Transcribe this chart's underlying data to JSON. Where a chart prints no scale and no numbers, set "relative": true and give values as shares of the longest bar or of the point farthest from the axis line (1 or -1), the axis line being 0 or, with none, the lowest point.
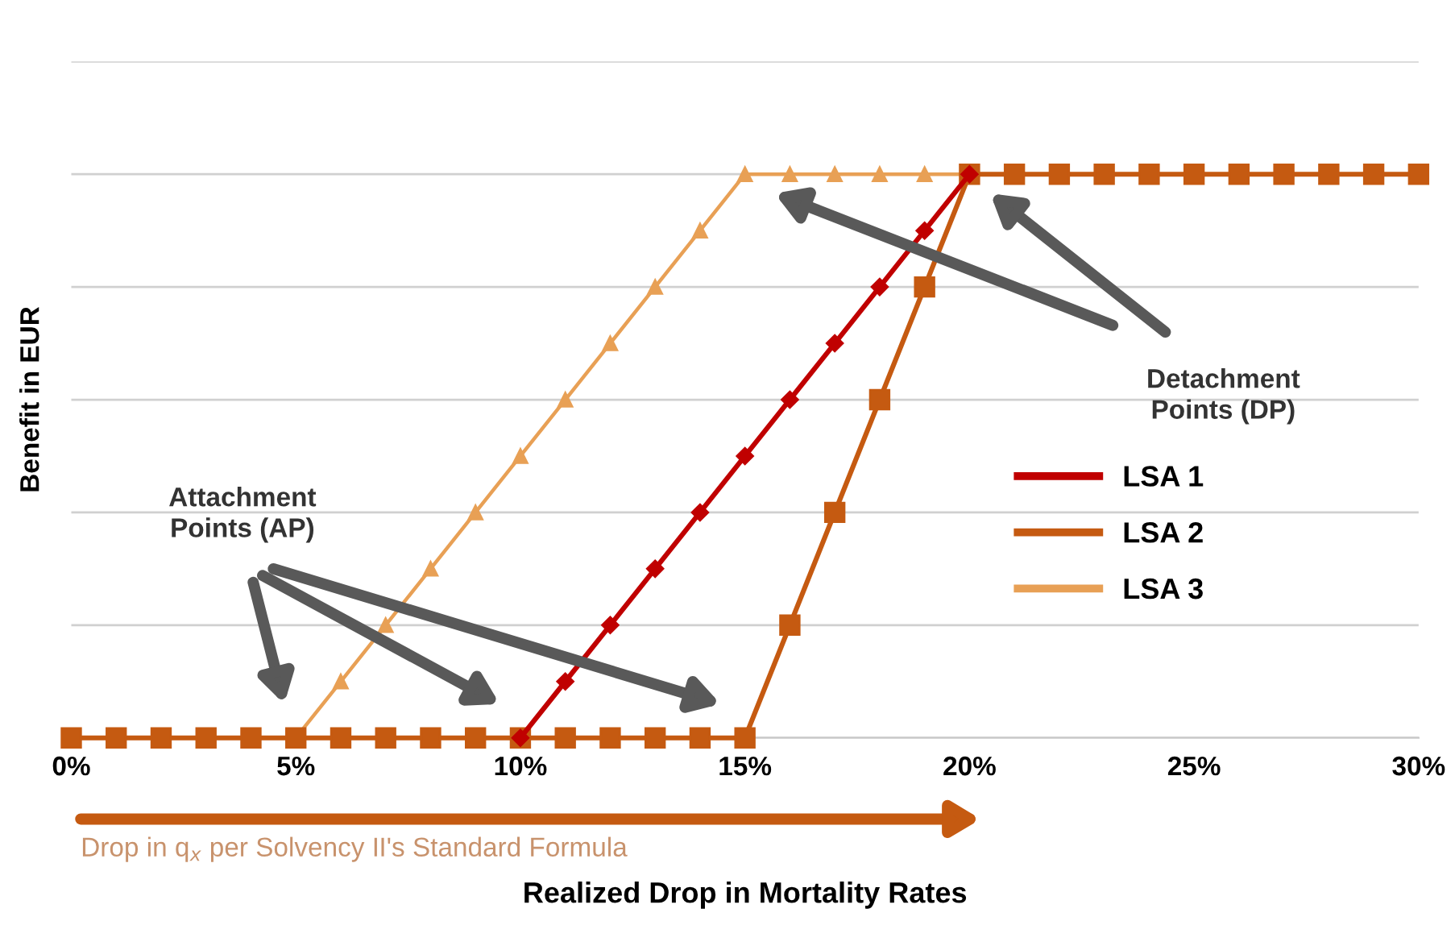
{
  "chart_data": {
    "type": "line",
    "relative": true,
    "xlabel": "Realized Drop in Mortality Rates",
    "ylabel": "Benefit in EUR",
    "x": [
      0,
      1,
      2,
      3,
      4,
      5,
      6,
      7,
      8,
      9,
      10,
      11,
      12,
      13,
      14,
      15,
      16,
      17,
      18,
      19,
      20,
      21,
      22,
      23,
      24,
      25,
      26,
      27,
      28,
      29,
      30
    ],
    "xlim": [
      0,
      30
    ],
    "xticks": [
      {
        "value": 0,
        "label": "0%"
      },
      {
        "value": 5,
        "label": "5%"
      },
      {
        "value": 10,
        "label": "10%"
      },
      {
        "value": 15,
        "label": "15%"
      },
      {
        "value": 20,
        "label": "20%"
      },
      {
        "value": 25,
        "label": "25%"
      },
      {
        "value": 30,
        "label": "30%"
      }
    ],
    "grid": "y",
    "legend": "right",
    "series": [
      {
        "name": "LSA 1",
        "color": "#c00000",
        "marker": "diamond",
        "values": [
          null,
          null,
          null,
          null,
          null,
          null,
          null,
          null,
          null,
          null,
          0,
          0.1,
          0.2,
          0.3,
          0.4,
          0.5,
          0.6,
          0.7,
          0.8,
          0.9,
          1,
          null,
          null,
          null,
          null,
          null,
          null,
          null,
          null,
          null,
          null
        ]
      },
      {
        "name": "LSA 2",
        "color": "#c55a11",
        "marker": "square",
        "values": [
          0,
          0,
          0,
          0,
          0,
          0,
          0,
          0,
          0,
          0,
          0,
          0,
          0,
          0,
          0,
          0,
          0.2,
          0.4,
          0.6,
          0.8,
          1,
          1,
          1,
          1,
          1,
          1,
          1,
          1,
          1,
          1,
          1
        ]
      },
      {
        "name": "LSA 3",
        "color": "#e8a055",
        "marker": "triangle",
        "values": [
          0,
          0,
          0,
          0,
          0,
          0,
          0.1,
          0.2,
          0.3,
          0.4,
          0.5,
          0.6,
          0.7,
          0.8,
          0.9,
          1,
          1,
          1,
          1,
          1,
          1,
          1,
          1,
          1,
          1,
          1,
          1,
          1,
          1,
          1,
          1
        ]
      }
    ],
    "annotations": [
      "Attachment\nPoints (AP)",
      "Detachment\nPoints (DP)",
      "Drop in q$_{x}$ per Solvency II's Standard Formula"
    ]
  }
}
